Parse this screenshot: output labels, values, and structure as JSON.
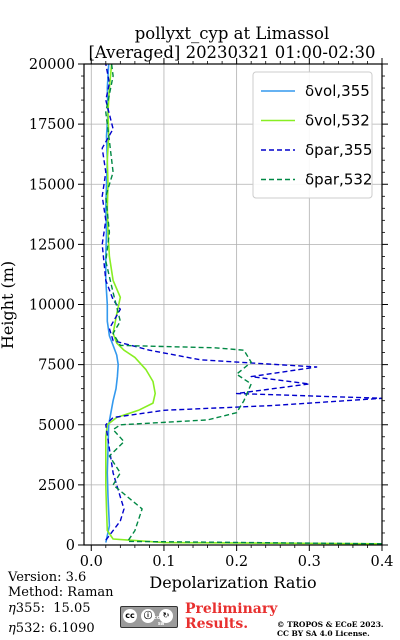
{
  "title": {
    "line1": "pollyxt_cyp at Limassol",
    "line2": "[Averaged] 20230321 01:00-02:30"
  },
  "info": {
    "version": "Version: 3.6",
    "method": "Method: Raman",
    "eta355": "15.05",
    "eta532": "6.1090"
  },
  "footer": {
    "preliminary_line1": "Preliminary",
    "preliminary_line2": "Results.",
    "copyright_line1": "© TROPOS & ECoE 2023.",
    "copyright_line2": "CC BY SA 4.0 License.",
    "license_badge": "cc by sa"
  },
  "chart_data": {
    "type": "line",
    "xlabel": "Depolarization Ratio",
    "ylabel": "Height (m)",
    "xlim": [
      -0.01,
      0.4
    ],
    "ylim": [
      0,
      20000
    ],
    "xticks": [
      0.0,
      0.1,
      0.2,
      0.3,
      0.4
    ],
    "xtick_labels": [
      "0.0",
      "0.1",
      "0.2",
      "0.3",
      "0.4"
    ],
    "yticks": [
      0,
      2500,
      5000,
      7500,
      10000,
      12500,
      15000,
      17500,
      20000
    ],
    "ytick_labels": [
      "0",
      "2500",
      "5000",
      "7500",
      "10000",
      "12500",
      "15000",
      "17500",
      "20000"
    ],
    "grid": true,
    "legend_position": "top-right",
    "series": [
      {
        "name": "δvol,355",
        "color": "#3399ee",
        "style": "solid",
        "points": [
          [
            0.02,
            100
          ],
          [
            0.025,
            800
          ],
          [
            0.023,
            2000
          ],
          [
            0.022,
            3000
          ],
          [
            0.023,
            4000
          ],
          [
            0.024,
            5000
          ],
          [
            0.027,
            5500
          ],
          [
            0.03,
            6000
          ],
          [
            0.034,
            6500
          ],
          [
            0.036,
            7000
          ],
          [
            0.037,
            7500
          ],
          [
            0.035,
            7900
          ],
          [
            0.03,
            8300
          ],
          [
            0.025,
            8700
          ],
          [
            0.022,
            9300
          ],
          [
            0.022,
            10000
          ],
          [
            0.02,
            11000
          ],
          [
            0.02,
            12000
          ],
          [
            0.021,
            13000
          ],
          [
            0.02,
            14000
          ],
          [
            0.021,
            15000
          ],
          [
            0.022,
            16000
          ],
          [
            0.021,
            17000
          ],
          [
            0.023,
            18000
          ],
          [
            0.022,
            19000
          ],
          [
            0.024,
            20000
          ]
        ]
      },
      {
        "name": "δvol,532",
        "color": "#88ee22",
        "style": "solid",
        "points": [
          [
            0.4,
            50
          ],
          [
            0.1,
            100
          ],
          [
            0.03,
            250
          ],
          [
            0.022,
            600
          ],
          [
            0.021,
            1500
          ],
          [
            0.02,
            2500
          ],
          [
            0.02,
            3500
          ],
          [
            0.02,
            4500
          ],
          [
            0.022,
            5000
          ],
          [
            0.035,
            5300
          ],
          [
            0.065,
            5600
          ],
          [
            0.085,
            5900
          ],
          [
            0.088,
            6300
          ],
          [
            0.085,
            6800
          ],
          [
            0.075,
            7300
          ],
          [
            0.06,
            7800
          ],
          [
            0.045,
            8100
          ],
          [
            0.035,
            8400
          ],
          [
            0.03,
            8800
          ],
          [
            0.035,
            9600
          ],
          [
            0.04,
            10300
          ],
          [
            0.03,
            11000
          ],
          [
            0.025,
            12000
          ],
          [
            0.023,
            13000
          ],
          [
            0.022,
            14000
          ],
          [
            0.023,
            15000
          ],
          [
            0.022,
            16000
          ],
          [
            0.024,
            17000
          ],
          [
            0.023,
            18000
          ],
          [
            0.025,
            19000
          ],
          [
            0.028,
            20000
          ]
        ]
      },
      {
        "name": "δpar,355",
        "color": "#0000cc",
        "style": "dashed",
        "points": [
          [
            0.02,
            200
          ],
          [
            0.03,
            600
          ],
          [
            0.04,
            1000
          ],
          [
            0.045,
            1500
          ],
          [
            0.04,
            2000
          ],
          [
            0.03,
            3000
          ],
          [
            0.025,
            4000
          ],
          [
            0.02,
            5000
          ],
          [
            0.03,
            5300
          ],
          [
            0.1,
            5600
          ],
          [
            0.25,
            5800
          ],
          [
            0.4,
            6100
          ],
          [
            0.2,
            6300
          ],
          [
            0.3,
            6700
          ],
          [
            0.22,
            7000
          ],
          [
            0.31,
            7400
          ],
          [
            0.15,
            7700
          ],
          [
            0.08,
            8100
          ],
          [
            0.03,
            8500
          ],
          [
            0.025,
            9000
          ],
          [
            0.04,
            9800
          ],
          [
            0.03,
            10200
          ],
          [
            0.02,
            11000
          ],
          [
            0.015,
            12500
          ],
          [
            0.02,
            13500
          ],
          [
            0.015,
            14500
          ],
          [
            0.02,
            15500
          ],
          [
            0.015,
            16500
          ],
          [
            0.03,
            17300
          ],
          [
            0.02,
            18500
          ],
          [
            0.025,
            19200
          ],
          [
            0.02,
            20000
          ]
        ]
      },
      {
        "name": "δpar,532",
        "color": "#008844",
        "style": "dashed",
        "points": [
          [
            0.4,
            50
          ],
          [
            0.05,
            150
          ],
          [
            0.06,
            600
          ],
          [
            0.07,
            1500
          ],
          [
            0.05,
            2000
          ],
          [
            0.03,
            2500
          ],
          [
            0.04,
            3000
          ],
          [
            0.025,
            3700
          ],
          [
            0.045,
            4300
          ],
          [
            0.03,
            4800
          ],
          [
            0.04,
            5000
          ],
          [
            0.16,
            5200
          ],
          [
            0.2,
            5500
          ],
          [
            0.21,
            6000
          ],
          [
            0.22,
            6700
          ],
          [
            0.2,
            7100
          ],
          [
            0.22,
            7600
          ],
          [
            0.21,
            8100
          ],
          [
            0.17,
            8200
          ],
          [
            0.04,
            8300
          ],
          [
            0.03,
            8800
          ],
          [
            0.04,
            9300
          ],
          [
            0.03,
            10500
          ],
          [
            0.02,
            11800
          ],
          [
            0.025,
            13000
          ],
          [
            0.02,
            14500
          ],
          [
            0.03,
            15500
          ],
          [
            0.025,
            16800
          ],
          [
            0.02,
            18000
          ],
          [
            0.03,
            19500
          ],
          [
            0.028,
            20000
          ]
        ]
      }
    ]
  }
}
